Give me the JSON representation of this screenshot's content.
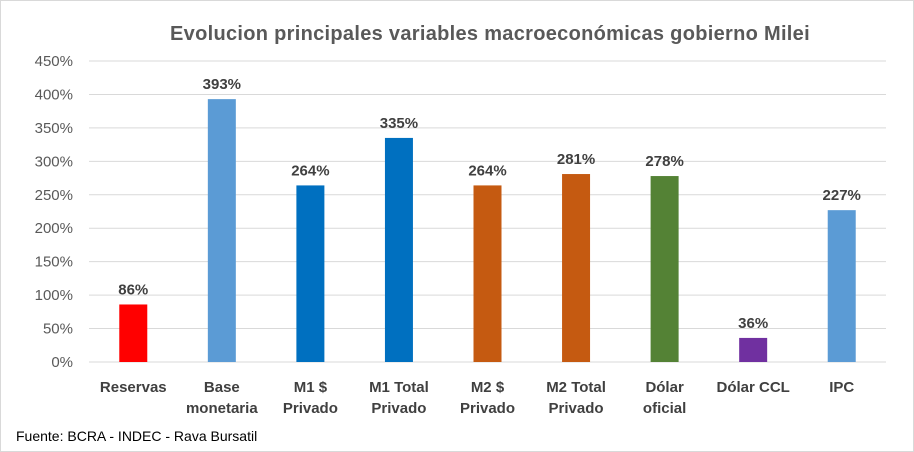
{
  "chart_data": {
    "type": "bar",
    "title": "Evolucion principales variables macroeconómicas gobierno Milei",
    "categories": [
      [
        "Reservas"
      ],
      [
        "Base",
        "monetaria"
      ],
      [
        "M1 $",
        "Privado"
      ],
      [
        "M1 Total",
        "Privado"
      ],
      [
        "M2 $",
        "Privado"
      ],
      [
        "M2 Total",
        "Privado"
      ],
      [
        "Dólar",
        "oficial"
      ],
      [
        "Dólar CCL"
      ],
      [
        "IPC"
      ]
    ],
    "values": [
      86,
      393,
      264,
      335,
      264,
      281,
      278,
      36,
      227
    ],
    "data_labels": [
      "86%",
      "393%",
      "264%",
      "335%",
      "264%",
      "281%",
      "278%",
      "36%",
      "227%"
    ],
    "colors": [
      "#FF0000",
      "#5B9BD5",
      "#0070C0",
      "#0070C0",
      "#C55A11",
      "#C55A11",
      "#548235",
      "#7030A0",
      "#5B9BD5"
    ],
    "ylim": [
      0,
      450
    ],
    "yticks": [
      0,
      50,
      100,
      150,
      200,
      250,
      300,
      350,
      400,
      450
    ],
    "ytick_labels": [
      "0%",
      "50%",
      "100%",
      "150%",
      "200%",
      "250%",
      "300%",
      "350%",
      "400%",
      "450%"
    ],
    "xlabel": "",
    "ylabel": "",
    "grid": true,
    "legend": "none"
  },
  "source": "Fuente: BCRA - INDEC - Rava Bursatil"
}
